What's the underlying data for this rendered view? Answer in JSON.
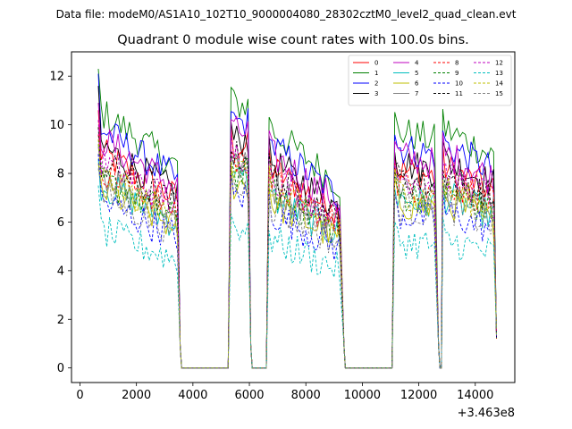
{
  "chart_data": {
    "type": "line",
    "suptitle": "Data file: modeM0/AS1A10_102T10_9000004080_28302cztM0_level2_quad_clean.evt",
    "title": "Quadrant 0 module wise count rates with 100.0s bins.",
    "xlabel": "",
    "ylabel": "",
    "x_offset_label": "+3.463e8",
    "xlim": [
      -300,
      15400
    ],
    "ylim": [
      -0.6,
      13.0
    ],
    "x_ticks": [
      0,
      2000,
      4000,
      6000,
      8000,
      10000,
      12000,
      14000
    ],
    "x_tick_labels": [
      "0",
      "2000",
      "4000",
      "6000",
      "8000",
      "10000",
      "12000",
      "14000"
    ],
    "y_ticks": [
      0,
      2,
      4,
      6,
      8,
      10,
      12
    ],
    "y_tick_labels": [
      "0",
      "2",
      "4",
      "6",
      "8",
      "10",
      "12"
    ],
    "grid": false,
    "legend_position": "top-right",
    "legend_columns": 4,
    "segments": [
      {
        "start": 650,
        "end": 3450,
        "drop": 3550,
        "level_factor": 1.0,
        "decay": 0.22
      },
      {
        "start": 5350,
        "end": 5950,
        "drop": 6050,
        "level_factor": 1.02,
        "decay": 0.0
      },
      {
        "start": 6700,
        "end": 9250,
        "drop": 9350,
        "level_factor": 0.93,
        "decay": 0.24
      },
      {
        "start": 11150,
        "end": 12600,
        "drop": 12700,
        "level_factor": 0.92,
        "decay": 0.04
      },
      {
        "start": 12850,
        "end": 14700,
        "drop": 14750,
        "level_factor": 0.93,
        "decay": 0.12
      }
    ],
    "zero_intervals": [
      [
        3600,
        5250
      ],
      [
        6100,
        6600
      ],
      [
        9400,
        11050
      ],
      [
        12750,
        12800
      ]
    ],
    "series": [
      {
        "name": "0",
        "color": "#ff0000",
        "dashed": false,
        "level": 8.9,
        "start": 10.6
      },
      {
        "name": "1",
        "color": "#008000",
        "dashed": false,
        "level": 10.6,
        "start": 12.3
      },
      {
        "name": "2",
        "color": "#0000ff",
        "dashed": false,
        "level": 9.9,
        "start": 12.1
      },
      {
        "name": "3",
        "color": "#000000",
        "dashed": false,
        "level": 9.2,
        "start": 11.6
      },
      {
        "name": "4",
        "color": "#bf00bf",
        "dashed": false,
        "level": 9.5,
        "start": 10.9
      },
      {
        "name": "5",
        "color": "#00bfbf",
        "dashed": false,
        "level": 7.6,
        "start": 8.6
      },
      {
        "name": "6",
        "color": "#bfbf00",
        "dashed": false,
        "level": 7.4,
        "start": 8.4
      },
      {
        "name": "7",
        "color": "#808080",
        "dashed": false,
        "level": 8.1,
        "start": 9.1
      },
      {
        "name": "8",
        "color": "#ff0000",
        "dashed": true,
        "level": 8.3,
        "start": 9.6
      },
      {
        "name": "9",
        "color": "#008000",
        "dashed": true,
        "level": 7.8,
        "start": 9.2
      },
      {
        "name": "10",
        "color": "#0000ff",
        "dashed": true,
        "level": 6.9,
        "start": 8.8
      },
      {
        "name": "11",
        "color": "#000000",
        "dashed": true,
        "level": 8.5,
        "start": 9.9
      },
      {
        "name": "12",
        "color": "#bf00bf",
        "dashed": true,
        "level": 8.6,
        "start": 10.2
      },
      {
        "name": "13",
        "color": "#00bfbf",
        "dashed": true,
        "level": 5.7,
        "start": 7.5
      },
      {
        "name": "14",
        "color": "#bfbf00",
        "dashed": true,
        "level": 7.9,
        "start": 9.4
      },
      {
        "name": "15",
        "color": "#808080",
        "dashed": true,
        "level": 7.2,
        "start": 8.2
      }
    ]
  }
}
